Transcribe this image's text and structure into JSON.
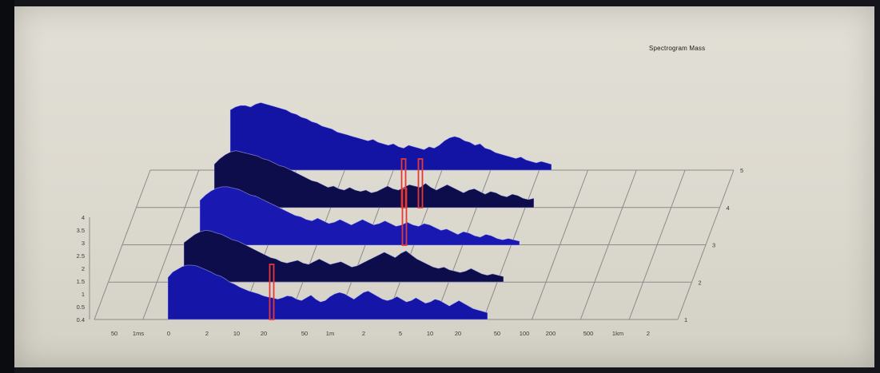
{
  "window": {
    "title": "Spectrogram Mass"
  },
  "chart_data": {
    "type": "area",
    "title": "Spectrogram Mass",
    "xlabel": "",
    "ylabel": "",
    "x_tick_labels": [
      "50",
      "1ms",
      "0",
      "2",
      "10",
      "20",
      "50",
      "1m",
      "2",
      "5",
      "10",
      "20",
      "50",
      "100",
      "200",
      "500",
      "1km",
      "2"
    ],
    "y_tick_labels": [
      "4",
      "3.5",
      "3",
      "2.5",
      "2",
      "1.5",
      "1",
      "0.5",
      "0.4"
    ],
    "depth_labels": [
      "1",
      "2",
      "3",
      "4",
      "5"
    ],
    "grid": true,
    "markers": [
      {
        "series": "1",
        "x_tick": "20",
        "color": "#e53935"
      },
      {
        "series": "3",
        "x_tick": "5",
        "color": "#e53935"
      },
      {
        "series": "4",
        "x_tick": "5",
        "color": "#e53935"
      },
      {
        "series": "4",
        "x_tick": "5",
        "color": "#e53935"
      }
    ],
    "series": [
      {
        "name": "1",
        "color": "#1515a8",
        "values": [
          0.62,
          0.7,
          0.74,
          0.78,
          0.8,
          0.8,
          0.79,
          0.76,
          0.73,
          0.7,
          0.66,
          0.64,
          0.6,
          0.55,
          0.52,
          0.48,
          0.45,
          0.42,
          0.4,
          0.38,
          0.35,
          0.33,
          0.32,
          0.3,
          0.32,
          0.35,
          0.34,
          0.3,
          0.28,
          0.32,
          0.36,
          0.3,
          0.26,
          0.28,
          0.34,
          0.38,
          0.4,
          0.38,
          0.34,
          0.3,
          0.35,
          0.4,
          0.42,
          0.38,
          0.34,
          0.3,
          0.28,
          0.3,
          0.34,
          0.3,
          0.26,
          0.28,
          0.32,
          0.28,
          0.24,
          0.26,
          0.3,
          0.28,
          0.24,
          0.2,
          0.24,
          0.28,
          0.24,
          0.2,
          0.16,
          0.14,
          0.12,
          0.1
        ]
      },
      {
        "name": "2",
        "color": "#0c0d4a",
        "values": [
          0.58,
          0.64,
          0.7,
          0.74,
          0.76,
          0.75,
          0.72,
          0.7,
          0.66,
          0.62,
          0.6,
          0.56,
          0.52,
          0.48,
          0.44,
          0.4,
          0.36,
          0.34,
          0.3,
          0.28,
          0.3,
          0.32,
          0.28,
          0.26,
          0.3,
          0.34,
          0.3,
          0.26,
          0.28,
          0.3,
          0.26,
          0.22,
          0.24,
          0.28,
          0.32,
          0.36,
          0.4,
          0.44,
          0.4,
          0.36,
          0.42,
          0.46,
          0.4,
          0.34,
          0.3,
          0.26,
          0.22,
          0.2,
          0.22,
          0.18,
          0.16,
          0.14,
          0.16,
          0.2,
          0.16,
          0.12,
          0.1,
          0.12,
          0.1,
          0.08
        ]
      },
      {
        "name": "3",
        "color": "#1919b2",
        "values": [
          0.66,
          0.74,
          0.8,
          0.84,
          0.86,
          0.86,
          0.84,
          0.82,
          0.78,
          0.74,
          0.72,
          0.68,
          0.64,
          0.6,
          0.56,
          0.52,
          0.48,
          0.44,
          0.42,
          0.38,
          0.36,
          0.4,
          0.36,
          0.32,
          0.34,
          0.38,
          0.34,
          0.3,
          0.34,
          0.38,
          0.34,
          0.3,
          0.32,
          0.36,
          0.32,
          0.28,
          0.3,
          0.34,
          0.3,
          0.28,
          0.32,
          0.3,
          0.26,
          0.22,
          0.24,
          0.2,
          0.16,
          0.2,
          0.18,
          0.14,
          0.12,
          0.16,
          0.14,
          0.1,
          0.08,
          0.1,
          0.08,
          0.06
        ]
      },
      {
        "name": "4",
        "color": "#0c0d4a",
        "values": [
          0.64,
          0.72,
          0.78,
          0.82,
          0.84,
          0.82,
          0.8,
          0.78,
          0.76,
          0.72,
          0.7,
          0.66,
          0.62,
          0.6,
          0.56,
          0.52,
          0.48,
          0.44,
          0.4,
          0.38,
          0.34,
          0.3,
          0.32,
          0.28,
          0.26,
          0.3,
          0.26,
          0.24,
          0.26,
          0.22,
          0.24,
          0.28,
          0.32,
          0.28,
          0.26,
          0.3,
          0.34,
          0.32,
          0.3,
          0.36,
          0.3,
          0.26,
          0.3,
          0.34,
          0.3,
          0.26,
          0.22,
          0.26,
          0.28,
          0.24,
          0.2,
          0.24,
          0.22,
          0.18,
          0.16,
          0.2,
          0.18,
          0.14,
          0.12,
          0.14
        ]
      },
      {
        "name": "5",
        "color": "#1414a4",
        "values": [
          0.82,
          0.86,
          0.88,
          0.88,
          0.86,
          0.9,
          0.92,
          0.9,
          0.88,
          0.86,
          0.84,
          0.82,
          0.78,
          0.76,
          0.72,
          0.7,
          0.66,
          0.64,
          0.6,
          0.58,
          0.56,
          0.52,
          0.5,
          0.48,
          0.46,
          0.44,
          0.42,
          0.4,
          0.42,
          0.38,
          0.36,
          0.34,
          0.36,
          0.32,
          0.3,
          0.34,
          0.32,
          0.3,
          0.28,
          0.32,
          0.3,
          0.34,
          0.4,
          0.44,
          0.46,
          0.44,
          0.4,
          0.38,
          0.34,
          0.36,
          0.3,
          0.28,
          0.24,
          0.22,
          0.2,
          0.18,
          0.16,
          0.18,
          0.14,
          0.12,
          0.1,
          0.12,
          0.1,
          0.08
        ]
      }
    ]
  }
}
